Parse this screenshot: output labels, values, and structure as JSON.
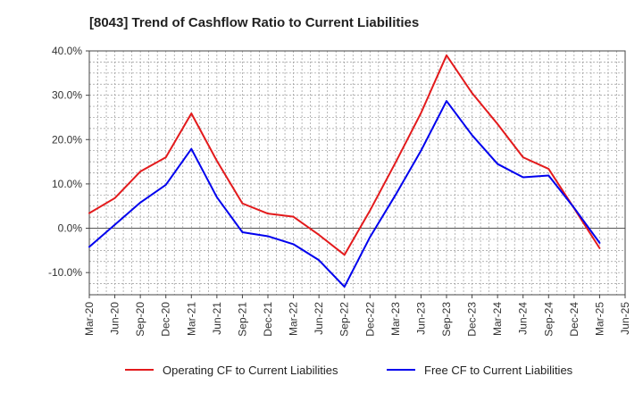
{
  "chart_data": {
    "type": "line",
    "title": "[8043]  Trend of Cashflow Ratio to Current Liabilities",
    "xlabel": "",
    "ylabel": "",
    "x": [
      "Mar-20",
      "Jun-20",
      "Sep-20",
      "Dec-20",
      "Mar-21",
      "Jun-21",
      "Sep-21",
      "Dec-21",
      "Mar-22",
      "Jun-22",
      "Sep-22",
      "Dec-22",
      "Mar-23",
      "Jun-23",
      "Sep-23",
      "Dec-23",
      "Mar-24",
      "Jun-24",
      "Sep-24",
      "Dec-24",
      "Mar-25",
      "Jun-25"
    ],
    "ylim": [
      -15,
      40
    ],
    "yticks": [
      40,
      30,
      20,
      10,
      0,
      -10
    ],
    "ytick_labels": [
      "40.0%",
      "30.0%",
      "20.0%",
      "10.0%",
      "0.0%",
      "-10.0%"
    ],
    "grid": true,
    "legend_position": "bottom",
    "series": [
      {
        "name": "Operating CF to Current Liabilities",
        "color": "#e31a1c",
        "values": [
          3.4,
          6.8,
          12.8,
          16.0,
          25.9,
          15.2,
          5.6,
          3.3,
          2.6,
          -1.5,
          -6.0,
          4.0,
          14.8,
          26.0,
          39.0,
          30.5,
          23.5,
          16.0,
          13.4,
          4.5,
          -4.5,
          null
        ]
      },
      {
        "name": "Free CF to Current Liabilities",
        "color": "#0000ee",
        "values": [
          -4.2,
          0.8,
          5.8,
          9.8,
          17.9,
          7.0,
          -0.9,
          -1.8,
          -3.6,
          -7.2,
          -13.2,
          -2.0,
          7.5,
          17.5,
          28.7,
          21.0,
          14.5,
          11.5,
          11.9,
          4.6,
          -3.3,
          null
        ]
      }
    ]
  }
}
